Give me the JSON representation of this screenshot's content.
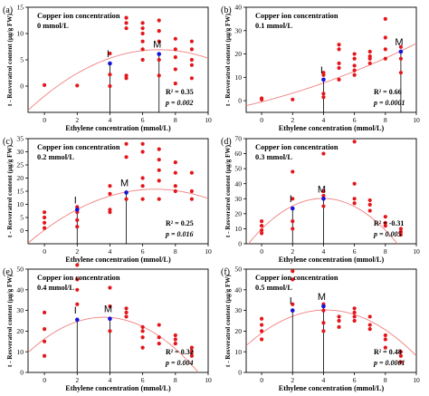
{
  "chart_data": [
    {
      "type": "scatter",
      "panel_label": "(a)",
      "title": "Copper ion concentration",
      "concentration": "0 mmol/L",
      "xlabel": "Ethylene concentration (mmol/L)",
      "ylabel": "t - Resveratrol content (μg/g FW)",
      "xlim": [
        -1,
        10
      ],
      "ylim": [
        -5,
        15
      ],
      "xticks": [
        0,
        2,
        4,
        6,
        8,
        10
      ],
      "yticks": [
        0,
        5,
        10,
        15
      ],
      "points": [
        [
          0,
          0.2
        ],
        [
          2,
          0.1
        ],
        [
          4,
          0
        ],
        [
          4,
          6.2
        ],
        [
          4,
          2.2
        ],
        [
          5,
          13
        ],
        [
          5,
          12
        ],
        [
          5,
          11
        ],
        [
          5,
          2
        ],
        [
          5,
          1.5
        ],
        [
          6,
          12
        ],
        [
          6,
          11
        ],
        [
          6,
          10
        ],
        [
          6,
          8.5
        ],
        [
          6,
          7
        ],
        [
          6,
          5
        ],
        [
          7,
          12.5
        ],
        [
          7,
          10.5
        ],
        [
          7,
          8.5
        ],
        [
          7,
          5
        ],
        [
          7,
          2
        ],
        [
          8,
          9
        ],
        [
          8,
          7
        ],
        [
          8,
          5.5
        ],
        [
          8,
          3.2
        ],
        [
          8,
          0.5
        ],
        [
          9,
          8.5
        ],
        [
          9,
          7
        ],
        [
          9,
          5
        ],
        [
          9,
          4
        ],
        [
          9,
          1.5
        ]
      ],
      "fit": [
        -1.9,
        2.52,
        -0.18
      ],
      "markers": [
        {
          "label": "I",
          "x": 4,
          "y": 4.3
        },
        {
          "label": "M",
          "x": 7,
          "y": 6.1
        }
      ],
      "r2": "R² = 0.35",
      "p": "p = 0.002"
    },
    {
      "type": "scatter",
      "panel_label": "(b)",
      "title": "Copper ion concentration",
      "concentration": "0.1 mmol/L",
      "xlabel": "Ethylene concentration (mmol/L)",
      "ylabel": "t - Resveratrol content (μg/g FW)",
      "xlim": [
        -1,
        10
      ],
      "ylim": [
        -5,
        40
      ],
      "xticks": [
        0,
        2,
        4,
        6,
        8,
        10
      ],
      "yticks": [
        0,
        10,
        20,
        30,
        40
      ],
      "points": [
        [
          0,
          1
        ],
        [
          0,
          0.5
        ],
        [
          2,
          0.5
        ],
        [
          4,
          1.5
        ],
        [
          4,
          3
        ],
        [
          4,
          11
        ],
        [
          4,
          12
        ],
        [
          5,
          24
        ],
        [
          5,
          22
        ],
        [
          5,
          16
        ],
        [
          5,
          14
        ],
        [
          5,
          9
        ],
        [
          6,
          20
        ],
        [
          6,
          18
        ],
        [
          6,
          15
        ],
        [
          6,
          13
        ],
        [
          6,
          11
        ],
        [
          7,
          21
        ],
        [
          7,
          19
        ],
        [
          7,
          18
        ],
        [
          7,
          16
        ],
        [
          8,
          35
        ],
        [
          8,
          27
        ],
        [
          8,
          22
        ],
        [
          8,
          18
        ],
        [
          9,
          23
        ],
        [
          9,
          21
        ],
        [
          9,
          18
        ],
        [
          9,
          12
        ]
      ],
      "fit": [
        -0.5,
        1.7,
        0.08
      ],
      "markers": [
        {
          "label": "I",
          "x": 4,
          "y": 9
        },
        {
          "label": "M",
          "x": 9,
          "y": 21
        }
      ],
      "r2": "R² = 0.66",
      "p": "p = 0.0001"
    },
    {
      "type": "scatter",
      "panel_label": "(c)",
      "title": "Copper ion concentration",
      "concentration": "0.2 mmol/L",
      "xlabel": "Ethylene concentration (mmol/L)",
      "ylabel": "t - Resveratrol content (μg/g FW)",
      "xlim": [
        -1,
        10
      ],
      "ylim": [
        -5,
        35
      ],
      "xticks": [
        0,
        2,
        4,
        6,
        8,
        10
      ],
      "yticks": [
        0,
        5,
        10,
        15,
        20,
        25,
        30,
        35
      ],
      "points": [
        [
          0,
          7
        ],
        [
          0,
          5
        ],
        [
          0,
          3
        ],
        [
          0,
          1
        ],
        [
          2,
          9
        ],
        [
          2,
          7
        ],
        [
          2,
          4
        ],
        [
          2,
          1.5
        ],
        [
          4,
          17
        ],
        [
          4,
          14
        ],
        [
          4,
          8
        ],
        [
          4,
          7
        ],
        [
          5,
          33
        ],
        [
          5,
          28
        ],
        [
          5,
          12
        ],
        [
          6,
          33
        ],
        [
          6,
          30
        ],
        [
          6,
          20
        ],
        [
          6,
          17
        ],
        [
          6,
          12
        ],
        [
          7,
          31
        ],
        [
          7,
          27
        ],
        [
          7,
          23
        ],
        [
          7,
          19
        ],
        [
          7,
          12
        ],
        [
          8,
          26
        ],
        [
          8,
          22
        ],
        [
          8,
          17
        ],
        [
          8,
          15
        ],
        [
          9,
          22
        ],
        [
          9,
          15
        ],
        [
          9,
          12
        ]
      ],
      "fit": [
        0.2,
        4.6,
        -0.34
      ],
      "markers": [
        {
          "label": "I",
          "x": 2,
          "y": 8
        },
        {
          "label": "M",
          "x": 5,
          "y": 14.5
        }
      ],
      "r2": "R² = 0.25",
      "p": "p = 0.016"
    },
    {
      "type": "scatter",
      "panel_label": "(d)",
      "title": "Copper ion concentration",
      "concentration": "0.3 mmol/L",
      "xlabel": "Ethylene concentration (mmol/L)",
      "ylabel": "t - Resveratrol content (μg/g FW)",
      "xlim": [
        -1,
        10
      ],
      "ylim": [
        0,
        70
      ],
      "xticks": [
        0,
        2,
        4,
        6,
        8,
        10
      ],
      "yticks": [
        0,
        10,
        20,
        30,
        40,
        50,
        60,
        70
      ],
      "points": [
        [
          0,
          15
        ],
        [
          0,
          12
        ],
        [
          0,
          9
        ],
        [
          0,
          7
        ],
        [
          2,
          48
        ],
        [
          2,
          30
        ],
        [
          2,
          15
        ],
        [
          2,
          10
        ],
        [
          4,
          60
        ],
        [
          4,
          35
        ],
        [
          4,
          32
        ],
        [
          4,
          30
        ],
        [
          4,
          25
        ],
        [
          6,
          68
        ],
        [
          6,
          40
        ],
        [
          6,
          30
        ],
        [
          6,
          27
        ],
        [
          7,
          29
        ],
        [
          7,
          26
        ],
        [
          7,
          22
        ],
        [
          8,
          18
        ],
        [
          8,
          14
        ],
        [
          8,
          12
        ],
        [
          9,
          10
        ],
        [
          9,
          8
        ],
        [
          9,
          6
        ]
      ],
      "fit": [
        9.8,
        10.3,
        -1.3
      ],
      "markers": [
        {
          "label": "I",
          "x": 2,
          "y": 23.5
        },
        {
          "label": "M",
          "x": 4,
          "y": 30
        }
      ],
      "r2": "R² = -0.31",
      "p": "p = 0.005"
    },
    {
      "type": "scatter",
      "panel_label": "(e)",
      "title": "Copper ion concentration",
      "concentration": "0.4 mmol/L",
      "xlabel": "Ethylene concentration (mmol/L)",
      "ylabel": "t - Resveratrol content (μg/g FW)",
      "xlim": [
        -1,
        10
      ],
      "ylim": [
        0,
        50
      ],
      "xticks": [
        0,
        2,
        4,
        6,
        8,
        10
      ],
      "yticks": [
        0,
        10,
        20,
        30,
        40,
        50
      ],
      "points": [
        [
          0,
          29
        ],
        [
          0,
          21
        ],
        [
          0,
          15
        ],
        [
          0,
          8
        ],
        [
          2,
          52
        ],
        [
          2,
          45
        ],
        [
          2,
          40
        ],
        [
          2,
          33
        ],
        [
          4,
          41
        ],
        [
          4,
          32
        ],
        [
          4,
          26
        ],
        [
          4,
          20
        ],
        [
          5,
          31
        ],
        [
          5,
          29
        ],
        [
          5,
          27
        ],
        [
          6,
          22
        ],
        [
          6,
          20
        ],
        [
          6,
          17
        ],
        [
          6,
          12
        ],
        [
          7,
          23
        ],
        [
          7,
          17
        ],
        [
          7,
          14
        ],
        [
          8,
          18
        ],
        [
          8,
          16
        ],
        [
          8,
          14
        ],
        [
          9,
          12
        ],
        [
          9,
          10
        ],
        [
          9,
          8
        ]
      ],
      "fit": [
        16.2,
        5.8,
        -0.8
      ],
      "markers": [
        {
          "label": "I",
          "x": 2,
          "y": 25.5
        },
        {
          "label": "M",
          "x": 4,
          "y": 26
        }
      ],
      "r2": "R² = 0.32",
      "p": "p = 0.004"
    },
    {
      "type": "scatter",
      "panel_label": "(f)",
      "title": "Copper ion concentration",
      "concentration": "0.5 mmol/L",
      "xlabel": "Ethylene concentration (mmol/L)",
      "ylabel": "t - Resveratrol content (μg/g FW)",
      "xlim": [
        -1,
        10
      ],
      "ylim": [
        0,
        50
      ],
      "xticks": [
        0,
        2,
        4,
        6,
        8,
        10
      ],
      "yticks": [
        0,
        10,
        20,
        30,
        40,
        50
      ],
      "points": [
        [
          0,
          26
        ],
        [
          0,
          23
        ],
        [
          0,
          20
        ],
        [
          0,
          16
        ],
        [
          2,
          49
        ],
        [
          2,
          45
        ],
        [
          2,
          33
        ],
        [
          2,
          30
        ],
        [
          4,
          33
        ],
        [
          4,
          30
        ],
        [
          4,
          24
        ],
        [
          4,
          20
        ],
        [
          5,
          27
        ],
        [
          5,
          25
        ],
        [
          5,
          22
        ],
        [
          6,
          31
        ],
        [
          6,
          29
        ],
        [
          6,
          27
        ],
        [
          6,
          25
        ],
        [
          7,
          27
        ],
        [
          7,
          23
        ],
        [
          7,
          21
        ],
        [
          8,
          18
        ],
        [
          8,
          16
        ],
        [
          8,
          12
        ],
        [
          9,
          10
        ],
        [
          9,
          8
        ],
        [
          9,
          5
        ]
      ],
      "fit": [
        19,
        5.4,
        -0.65
      ],
      "markers": [
        {
          "label": "I",
          "x": 2,
          "y": 30
        },
        {
          "label": "M",
          "x": 4,
          "y": 32
        }
      ],
      "r2": "R² = 0.48",
      "p": "p = 0.0001"
    }
  ]
}
